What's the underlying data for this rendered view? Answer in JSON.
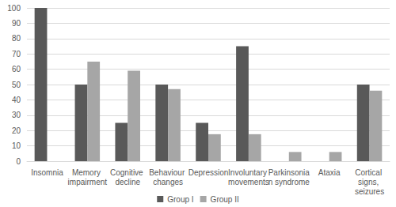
{
  "chart_data": {
    "type": "bar",
    "categories": [
      "Insomnia",
      "Memory impairment",
      "Cognitive decline",
      "Behaviour changes",
      "Depression",
      "Involuntary movements",
      "Parkinsonian syndrome",
      "Ataxia",
      "Cortical signs, seizures"
    ],
    "series": [
      {
        "name": "Group I",
        "color": "#595959",
        "values": [
          100,
          50,
          25,
          50,
          25,
          75,
          0,
          0,
          50
        ]
      },
      {
        "name": "Group II",
        "color": "#a6a6a6",
        "values": [
          0,
          65,
          59,
          47,
          17.6,
          17.6,
          6,
          6,
          46
        ]
      }
    ],
    "ylim": [
      0,
      100
    ],
    "yticks": [
      0,
      10,
      20,
      30,
      40,
      50,
      60,
      70,
      80,
      90,
      100
    ],
    "grid": true,
    "legend": "bottom"
  }
}
